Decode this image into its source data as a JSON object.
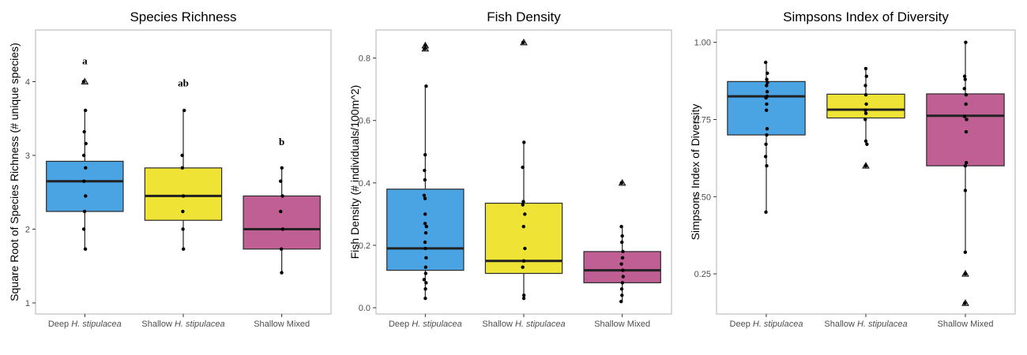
{
  "chart_data": [
    {
      "type": "box",
      "title": "Species Richness",
      "ylabel": "Square Root of Species Richness (# unique species)",
      "xlabel": "",
      "ylim": [
        0.85,
        4.7
      ],
      "yticks": [
        1,
        2,
        3,
        4
      ],
      "yticklabels": [
        "1",
        "2",
        "3",
        "4"
      ],
      "categories": [
        {
          "prefix": "Deep ",
          "italic": "H. stipulacea"
        },
        {
          "prefix": "Shallow ",
          "italic": "H. stipulacea"
        },
        {
          "prefix": "Shallow Mixed",
          "italic": ""
        }
      ],
      "colors": [
        "#4aa3e3",
        "#efe336",
        "#bf5f93"
      ],
      "boxes": [
        {
          "q1": 2.24,
          "median": 2.65,
          "q3": 2.92,
          "whisker_low": 1.73,
          "whisker_high": 3.61
        },
        {
          "q1": 2.12,
          "median": 2.45,
          "q3": 2.83,
          "whisker_low": 1.73,
          "whisker_high": 3.61
        },
        {
          "q1": 1.73,
          "median": 2.0,
          "q3": 2.45,
          "whisker_low": 1.41,
          "whisker_high": 2.83
        }
      ],
      "outliers": [
        [
          4.0
        ],
        [],
        []
      ],
      "points": [
        [
          1.73,
          2.0,
          2.24,
          2.45,
          2.65,
          2.83,
          3.0,
          3.16,
          3.32,
          3.61,
          4.0
        ],
        [
          1.73,
          2.0,
          2.24,
          2.45,
          2.83,
          3.0,
          3.61
        ],
        [
          1.41,
          1.73,
          2.0,
          2.24,
          2.45,
          2.65,
          2.83
        ]
      ],
      "annotations": [
        {
          "label": "a",
          "y": 4.28
        },
        {
          "label": "ab",
          "y": 3.98
        },
        {
          "label": "b",
          "y": 3.18
        }
      ]
    },
    {
      "type": "box",
      "title": "Fish Density",
      "ylabel": "Fish Density (# individuals/100m^2)",
      "xlabel": "",
      "ylim": [
        -0.02,
        0.89
      ],
      "yticks": [
        0.0,
        0.2,
        0.4,
        0.6,
        0.8
      ],
      "yticklabels": [
        "0.0",
        "0.2",
        "0.4",
        "0.6",
        "0.8"
      ],
      "categories": [
        {
          "prefix": "Deep ",
          "italic": "H. stipulacea"
        },
        {
          "prefix": "Shallow ",
          "italic": "H. stipulacea"
        },
        {
          "prefix": "Shallow Mixed",
          "italic": ""
        }
      ],
      "colors": [
        "#4aa3e3",
        "#efe336",
        "#bf5f93"
      ],
      "boxes": [
        {
          "q1": 0.12,
          "median": 0.19,
          "q3": 0.38,
          "whisker_low": 0.03,
          "whisker_high": 0.71
        },
        {
          "q1": 0.11,
          "median": 0.15,
          "q3": 0.335,
          "whisker_low": 0.03,
          "whisker_high": 0.53
        },
        {
          "q1": 0.08,
          "median": 0.12,
          "q3": 0.18,
          "whisker_low": 0.02,
          "whisker_high": 0.26
        }
      ],
      "outliers": [
        [
          0.83,
          0.84
        ],
        [
          0.85
        ],
        [
          0.4
        ]
      ],
      "points": [
        [
          0.03,
          0.06,
          0.08,
          0.09,
          0.11,
          0.13,
          0.16,
          0.19,
          0.21,
          0.24,
          0.26,
          0.27,
          0.3,
          0.35,
          0.36,
          0.41,
          0.44,
          0.49,
          0.71,
          0.83,
          0.84
        ],
        [
          0.03,
          0.04,
          0.13,
          0.15,
          0.19,
          0.26,
          0.3,
          0.33,
          0.34,
          0.45,
          0.53,
          0.85
        ],
        [
          0.02,
          0.04,
          0.06,
          0.08,
          0.1,
          0.12,
          0.14,
          0.16,
          0.18,
          0.21,
          0.23,
          0.26,
          0.4
        ]
      ],
      "annotations": []
    },
    {
      "type": "box",
      "title": "Simpsons Index of Diversity",
      "ylabel": "Simpsons Index of Diversity",
      "xlabel": "",
      "ylim": [
        0.12,
        1.04
      ],
      "yticks": [
        0.25,
        0.5,
        0.75,
        1.0
      ],
      "yticklabels": [
        "0.25",
        "0.50",
        "0.75",
        "1.00"
      ],
      "categories": [
        {
          "prefix": "Deep ",
          "italic": "H. stipulacea"
        },
        {
          "prefix": "Shallow ",
          "italic": "H. stipulacea"
        },
        {
          "prefix": "Shallow Mixed",
          "italic": ""
        }
      ],
      "colors": [
        "#4aa3e3",
        "#efe336",
        "#bf5f93"
      ],
      "boxes": [
        {
          "q1": 0.7,
          "median": 0.825,
          "q3": 0.873,
          "whisker_low": 0.45,
          "whisker_high": 0.935
        },
        {
          "q1": 0.755,
          "median": 0.782,
          "q3": 0.832,
          "whisker_low": 0.67,
          "whisker_high": 0.915
        },
        {
          "q1": 0.6,
          "median": 0.762,
          "q3": 0.833,
          "whisker_low": 0.32,
          "whisker_high": 1.0
        }
      ],
      "outliers": [
        [],
        [
          0.6
        ],
        [
          0.25,
          0.155
        ]
      ],
      "points": [
        [
          0.45,
          0.6,
          0.63,
          0.67,
          0.7,
          0.72,
          0.78,
          0.8,
          0.82,
          0.825,
          0.84,
          0.86,
          0.87,
          0.88,
          0.9,
          0.935
        ],
        [
          0.6,
          0.67,
          0.68,
          0.75,
          0.77,
          0.78,
          0.8,
          0.83,
          0.86,
          0.89,
          0.915
        ],
        [
          0.155,
          0.25,
          0.32,
          0.52,
          0.6,
          0.61,
          0.71,
          0.75,
          0.76,
          0.8,
          0.83,
          0.85,
          0.88,
          0.89,
          1.0
        ]
      ],
      "annotations": []
    }
  ]
}
